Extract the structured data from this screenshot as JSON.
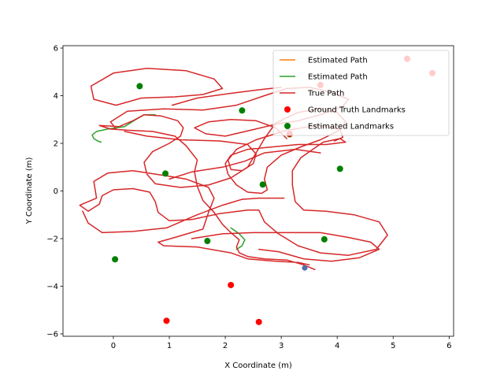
{
  "chart_data": {
    "type": "scatter",
    "xlabel": "X Coordinate (m)",
    "ylabel": "Y Coordinate (m)",
    "xlim": [
      -0.9,
      6.08
    ],
    "ylim": [
      -6.1,
      6.1
    ],
    "x_ticks": [
      0,
      1,
      2,
      3,
      4,
      5,
      6
    ],
    "y_ticks": [
      -6,
      -4,
      -2,
      0,
      2,
      4,
      6
    ],
    "x_tick_labels": [
      "0",
      "1",
      "2",
      "3",
      "4",
      "5",
      "6"
    ],
    "y_tick_labels": [
      "−6",
      "−4",
      "−2",
      "0",
      "2",
      "4",
      "6"
    ],
    "grid": false,
    "legend_placement": "top-right",
    "colors": {
      "estimated_path_1": "#ff7f0e",
      "estimated_path_2": "#2ca02c",
      "true_path": "#d62728",
      "ground_truth_landmarks": "#ff0000",
      "estimated_landmarks": "#008000",
      "robot_marker": "#4c72b0"
    },
    "legend": [
      {
        "label": "Estimated Path",
        "kind": "line",
        "color": "#ff7f0e"
      },
      {
        "label": "Estimated Path",
        "kind": "line",
        "color": "#2ca02c"
      },
      {
        "label": "True Path",
        "kind": "line",
        "color": "#d62728"
      },
      {
        "label": "Ground Truth Landmarks",
        "kind": "point",
        "color": "#ff0000"
      },
      {
        "label": "Estimated Landmarks",
        "kind": "point",
        "color": "#008000"
      }
    ],
    "series": [
      {
        "kind": "line",
        "color": "#2ca02c",
        "points": [
          [
            -0.22,
            2.05
          ],
          [
            -0.28,
            2.1
          ],
          [
            -0.35,
            2.2
          ],
          [
            -0.38,
            2.35
          ],
          [
            -0.3,
            2.5
          ],
          [
            -0.1,
            2.6
          ],
          [
            0.2,
            2.7
          ],
          [
            0.4,
            3.0
          ],
          [
            0.55,
            3.2
          ],
          [
            0.75,
            3.2
          ]
        ]
      },
      {
        "kind": "line",
        "color": "#2ca02c",
        "points": [
          [
            2.2,
            -2.45
          ],
          [
            2.3,
            -2.3
          ],
          [
            2.35,
            -2.05
          ],
          [
            2.25,
            -1.8
          ],
          [
            2.1,
            -1.55
          ]
        ]
      },
      {
        "kind": "line",
        "color": "#d62728",
        "points": [
          [
            3.6,
            -3.3
          ],
          [
            3.4,
            -3.1
          ],
          [
            3.1,
            -2.9
          ],
          [
            2.7,
            -2.85
          ],
          [
            2.4,
            -2.75
          ],
          [
            2.25,
            -2.6
          ],
          [
            2.2,
            -2.35
          ],
          [
            2.25,
            -2.05
          ],
          [
            2.1,
            -1.75
          ],
          [
            1.95,
            -1.4
          ],
          [
            1.8,
            -0.9
          ],
          [
            1.6,
            -0.4
          ],
          [
            1.5,
            0.2
          ],
          [
            1.45,
            0.8
          ],
          [
            1.5,
            1.3
          ],
          [
            1.3,
            1.9
          ],
          [
            1.1,
            2.3
          ],
          [
            0.7,
            2.5
          ],
          [
            0.25,
            2.55
          ],
          [
            -0.05,
            2.6
          ],
          [
            -0.25,
            2.75
          ],
          [
            0.1,
            2.7
          ],
          [
            0.35,
            2.95
          ],
          [
            0.55,
            3.2
          ],
          [
            0.85,
            3.15
          ],
          [
            1.15,
            2.95
          ],
          [
            1.25,
            2.65
          ],
          [
            1.2,
            2.3
          ],
          [
            1.0,
            2.0
          ],
          [
            0.7,
            1.65
          ],
          [
            0.55,
            1.2
          ],
          [
            0.6,
            0.7
          ],
          [
            0.75,
            0.3
          ],
          [
            1.2,
            0.15
          ],
          [
            1.7,
            0.25
          ],
          [
            2.1,
            0.55
          ],
          [
            2.4,
            1.0
          ],
          [
            2.55,
            1.6
          ],
          [
            2.7,
            2.2
          ],
          [
            2.9,
            2.85
          ],
          [
            3.3,
            3.3
          ],
          [
            3.7,
            3.45
          ],
          [
            4.0,
            3.3
          ],
          [
            4.15,
            2.9
          ],
          [
            4.0,
            2.5
          ],
          [
            3.7,
            2.15
          ],
          [
            3.35,
            1.85
          ],
          [
            3.0,
            1.5
          ],
          [
            2.75,
            1.0
          ],
          [
            2.7,
            0.5
          ],
          [
            2.75,
            0.05
          ],
          [
            2.65,
            -0.1
          ],
          [
            2.4,
            -0.05
          ],
          [
            2.2,
            0.25
          ],
          [
            2.05,
            0.7
          ],
          [
            2.0,
            1.15
          ],
          [
            2.1,
            1.5
          ],
          [
            2.4,
            1.75
          ],
          [
            2.85,
            1.85
          ],
          [
            3.3,
            1.95
          ],
          [
            3.8,
            1.95
          ],
          [
            4.15,
            2.05
          ],
          [
            4.05,
            2.2
          ],
          [
            3.75,
            2.05
          ],
          [
            3.35,
            1.4
          ],
          [
            3.2,
            0.85
          ],
          [
            3.2,
            0.25
          ],
          [
            3.25,
            -0.45
          ],
          [
            3.4,
            -0.8
          ],
          [
            3.8,
            -0.85
          ],
          [
            4.3,
            -1.0
          ],
          [
            4.75,
            -1.3
          ],
          [
            4.9,
            -1.85
          ],
          [
            4.7,
            -2.45
          ],
          [
            4.2,
            -2.7
          ],
          [
            3.7,
            -2.6
          ],
          [
            3.3,
            -2.3
          ],
          [
            2.95,
            -1.8
          ],
          [
            2.7,
            -1.3
          ],
          [
            2.6,
            -0.8
          ],
          [
            2.4,
            -0.8
          ],
          [
            1.9,
            -0.95
          ],
          [
            1.4,
            -1.2
          ],
          [
            1.0,
            -1.25
          ],
          [
            0.8,
            -0.9
          ],
          [
            0.75,
            -0.45
          ],
          [
            0.65,
            -0.05
          ],
          [
            0.35,
            0.1
          ],
          [
            0.0,
            0.05
          ],
          [
            -0.2,
            -0.2
          ],
          [
            -0.25,
            -0.55
          ],
          [
            -0.45,
            -0.85
          ],
          [
            -0.6,
            -0.6
          ],
          [
            -0.3,
            -0.3
          ],
          [
            -0.35,
            0.4
          ],
          [
            -0.1,
            0.75
          ],
          [
            0.35,
            0.85
          ],
          [
            0.9,
            0.65
          ],
          [
            1.3,
            0.5
          ],
          [
            1.7,
            0.15
          ],
          [
            1.8,
            -0.3
          ],
          [
            1.7,
            -0.9
          ],
          [
            1.6,
            -1.6
          ],
          [
            1.1,
            -1.95
          ],
          [
            0.8,
            -2.15
          ],
          [
            0.9,
            -2.3
          ],
          [
            1.5,
            -2.35
          ],
          [
            2.1,
            -2.6
          ],
          [
            2.4,
            -2.85
          ],
          [
            2.9,
            -2.95
          ],
          [
            3.3,
            -3.0
          ],
          [
            3.5,
            -3.1
          ]
        ]
      },
      {
        "kind": "line",
        "color": "#d62728",
        "points": [
          [
            0.2,
            2.5
          ],
          [
            0.6,
            2.3
          ],
          [
            1.2,
            2.15
          ],
          [
            1.9,
            2.1
          ],
          [
            2.4,
            1.95
          ],
          [
            2.55,
            1.55
          ],
          [
            2.5,
            1.15
          ],
          [
            2.3,
            0.85
          ],
          [
            2.1,
            0.9
          ],
          [
            2.05,
            1.3
          ],
          [
            2.2,
            1.75
          ],
          [
            2.55,
            2.15
          ],
          [
            3.1,
            2.55
          ],
          [
            3.65,
            2.75
          ],
          [
            4.05,
            2.6
          ],
          [
            4.1,
            2.25
          ],
          [
            3.95,
            2.1
          ]
        ]
      },
      {
        "kind": "line",
        "color": "#d62728",
        "points": [
          [
            0.05,
            2.6
          ],
          [
            -0.05,
            2.9
          ],
          [
            0.25,
            3.35
          ],
          [
            0.9,
            3.45
          ],
          [
            1.6,
            3.4
          ],
          [
            2.2,
            3.6
          ],
          [
            2.7,
            4.0
          ],
          [
            3.1,
            4.3
          ],
          [
            3.5,
            4.35
          ],
          [
            3.9,
            4.15
          ],
          [
            4.2,
            3.85
          ],
          [
            4.1,
            3.55
          ],
          [
            3.7,
            3.2
          ],
          [
            3.3,
            2.95
          ],
          [
            2.9,
            2.8
          ],
          [
            2.45,
            2.55
          ],
          [
            2.0,
            2.3
          ],
          [
            1.65,
            2.4
          ],
          [
            1.45,
            2.65
          ],
          [
            1.7,
            2.9
          ],
          [
            2.1,
            3.0
          ],
          [
            2.55,
            2.95
          ],
          [
            2.9,
            2.65
          ],
          [
            3.1,
            2.2
          ]
        ]
      },
      {
        "kind": "line",
        "color": "#d62728",
        "points": [
          [
            0.05,
            3.6
          ],
          [
            -0.35,
            3.85
          ],
          [
            -0.4,
            4.4
          ],
          [
            0.0,
            4.95
          ],
          [
            0.6,
            5.15
          ],
          [
            1.3,
            5.05
          ],
          [
            1.8,
            4.7
          ],
          [
            1.95,
            4.3
          ],
          [
            1.6,
            4.05
          ],
          [
            1.1,
            3.95
          ],
          [
            0.5,
            3.9
          ],
          [
            0.05,
            3.6
          ]
        ]
      },
      {
        "kind": "line",
        "color": "#d62728",
        "points": [
          [
            1.05,
            3.6
          ],
          [
            1.5,
            3.9
          ],
          [
            2.1,
            4.1
          ],
          [
            2.6,
            4.25
          ],
          [
            3.0,
            4.35
          ]
        ]
      },
      {
        "kind": "line",
        "color": "#d62728",
        "points": [
          [
            1.4,
            -2.0
          ],
          [
            1.95,
            -1.8
          ],
          [
            2.5,
            -1.75
          ],
          [
            3.2,
            -1.75
          ],
          [
            3.7,
            -1.75
          ],
          [
            4.2,
            -1.95
          ],
          [
            4.6,
            -2.15
          ],
          [
            4.75,
            -2.45
          ],
          [
            4.4,
            -2.8
          ],
          [
            3.9,
            -2.95
          ],
          [
            3.4,
            -2.85
          ],
          [
            2.95,
            -2.55
          ],
          [
            2.6,
            -2.45
          ]
        ]
      },
      {
        "kind": "line",
        "color": "#d62728",
        "points": [
          [
            1.0,
            0.5
          ],
          [
            1.4,
            0.8
          ],
          [
            1.95,
            1.0
          ],
          [
            2.35,
            1.25
          ],
          [
            2.7,
            1.6
          ],
          [
            3.25,
            1.75
          ],
          [
            3.7,
            1.6
          ]
        ]
      },
      {
        "kind": "line",
        "color": "#d62728",
        "points": [
          [
            -0.2,
            -1.75
          ],
          [
            0.35,
            -1.7
          ],
          [
            0.95,
            -1.55
          ],
          [
            1.5,
            -1.0
          ],
          [
            1.95,
            -0.6
          ],
          [
            2.3,
            -0.35
          ],
          [
            2.6,
            -0.3
          ],
          [
            3.05,
            -0.3
          ]
        ]
      },
      {
        "kind": "line",
        "color": "#d62728",
        "points": [
          [
            -0.55,
            -0.85
          ],
          [
            -0.45,
            -1.35
          ],
          [
            -0.2,
            -1.75
          ]
        ]
      }
    ],
    "ground_truth_landmarks": [
      [
        0.95,
        -5.45
      ],
      [
        2.1,
        -3.95
      ],
      [
        2.6,
        -5.5
      ],
      [
        5.25,
        5.55
      ],
      [
        5.7,
        4.95
      ],
      [
        3.7,
        4.45
      ],
      [
        3.15,
        2.4
      ]
    ],
    "estimated_landmarks": [
      [
        0.47,
        4.4
      ],
      [
        2.3,
        3.38
      ],
      [
        0.93,
        0.73
      ],
      [
        2.67,
        0.27
      ],
      [
        4.05,
        0.93
      ],
      [
        3.15,
        2.38
      ],
      [
        1.68,
        -2.1
      ],
      [
        3.77,
        -2.03
      ],
      [
        0.03,
        -2.87
      ]
    ],
    "robot_position": [
      3.42,
      -3.23
    ]
  }
}
